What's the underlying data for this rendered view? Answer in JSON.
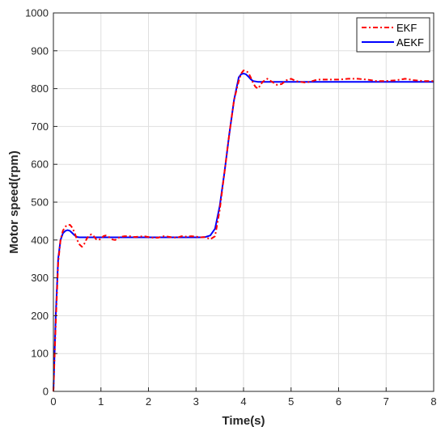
{
  "chart_data": {
    "type": "line",
    "title": "",
    "xlabel": "Time(s)",
    "ylabel": "Motor speed(rpm)",
    "xlim": [
      0,
      8
    ],
    "ylim": [
      0,
      1000
    ],
    "xticks": [
      0,
      1,
      2,
      3,
      4,
      5,
      6,
      7,
      8
    ],
    "yticks": [
      0,
      100,
      200,
      300,
      400,
      500,
      600,
      700,
      800,
      900,
      1000
    ],
    "grid": true,
    "legend_position": "top-right",
    "series": [
      {
        "name": "EKF",
        "color": "#ff0000",
        "style": "dash-dot",
        "x": [
          0,
          0.05,
          0.1,
          0.15,
          0.2,
          0.25,
          0.3,
          0.35,
          0.4,
          0.45,
          0.5,
          0.55,
          0.6,
          0.65,
          0.7,
          0.75,
          0.8,
          0.85,
          0.9,
          0.95,
          1.0,
          1.05,
          1.1,
          1.15,
          1.2,
          1.25,
          1.3,
          1.35,
          1.4,
          1.5,
          1.6,
          1.7,
          1.8,
          1.9,
          2.0,
          2.1,
          2.2,
          2.3,
          2.4,
          2.5,
          2.6,
          2.7,
          2.8,
          2.9,
          3.0,
          3.1,
          3.2,
          3.3,
          3.4,
          3.5,
          3.6,
          3.7,
          3.8,
          3.9,
          3.95,
          4.0,
          4.05,
          4.1,
          4.15,
          4.2,
          4.25,
          4.3,
          4.35,
          4.4,
          4.5,
          4.6,
          4.7,
          4.8,
          4.9,
          5.0,
          5.1,
          5.2,
          5.3,
          5.4,
          5.5,
          5.6,
          5.8,
          6.0,
          6.2,
          6.4,
          6.6,
          6.8,
          7.0,
          7.2,
          7.4,
          7.6,
          7.8,
          8.0
        ],
        "y": [
          0,
          180,
          340,
          400,
          425,
          435,
          440,
          440,
          432,
          418,
          400,
          388,
          382,
          390,
          403,
          412,
          415,
          410,
          402,
          400,
          403,
          410,
          412,
          410,
          405,
          401,
          400,
          404,
          408,
          410,
          410,
          408,
          409,
          410,
          408,
          406,
          406,
          410,
          409,
          407,
          406,
          410,
          409,
          410,
          409,
          407,
          408,
          402,
          410,
          480,
          580,
          680,
          770,
          820,
          840,
          848,
          847,
          842,
          830,
          815,
          805,
          800,
          808,
          818,
          826,
          818,
          810,
          812,
          822,
          826,
          820,
          818,
          816,
          818,
          822,
          824,
          824,
          824,
          826,
          826,
          824,
          820,
          820,
          822,
          826,
          822,
          820,
          820
        ]
      },
      {
        "name": "AEKF",
        "color": "#0000ff",
        "style": "solid",
        "x": [
          0,
          0.05,
          0.1,
          0.15,
          0.2,
          0.25,
          0.3,
          0.35,
          0.4,
          0.45,
          0.5,
          0.55,
          0.6,
          0.8,
          1.0,
          1.5,
          2.0,
          2.5,
          3.0,
          3.1,
          3.2,
          3.3,
          3.4,
          3.5,
          3.6,
          3.7,
          3.8,
          3.9,
          3.95,
          4.0,
          4.05,
          4.1,
          4.15,
          4.2,
          4.3,
          4.4,
          4.6,
          4.8,
          5.0,
          5.5,
          6.0,
          7.0,
          8.0
        ],
        "y": [
          0,
          200,
          350,
          400,
          418,
          424,
          426,
          424,
          418,
          412,
          408,
          407,
          407,
          407,
          407,
          407,
          407,
          407,
          407,
          407,
          408,
          412,
          430,
          490,
          580,
          680,
          770,
          830,
          838,
          840,
          838,
          832,
          825,
          820,
          818,
          818,
          818,
          818,
          818,
          818,
          818,
          818,
          818
        ]
      }
    ]
  }
}
